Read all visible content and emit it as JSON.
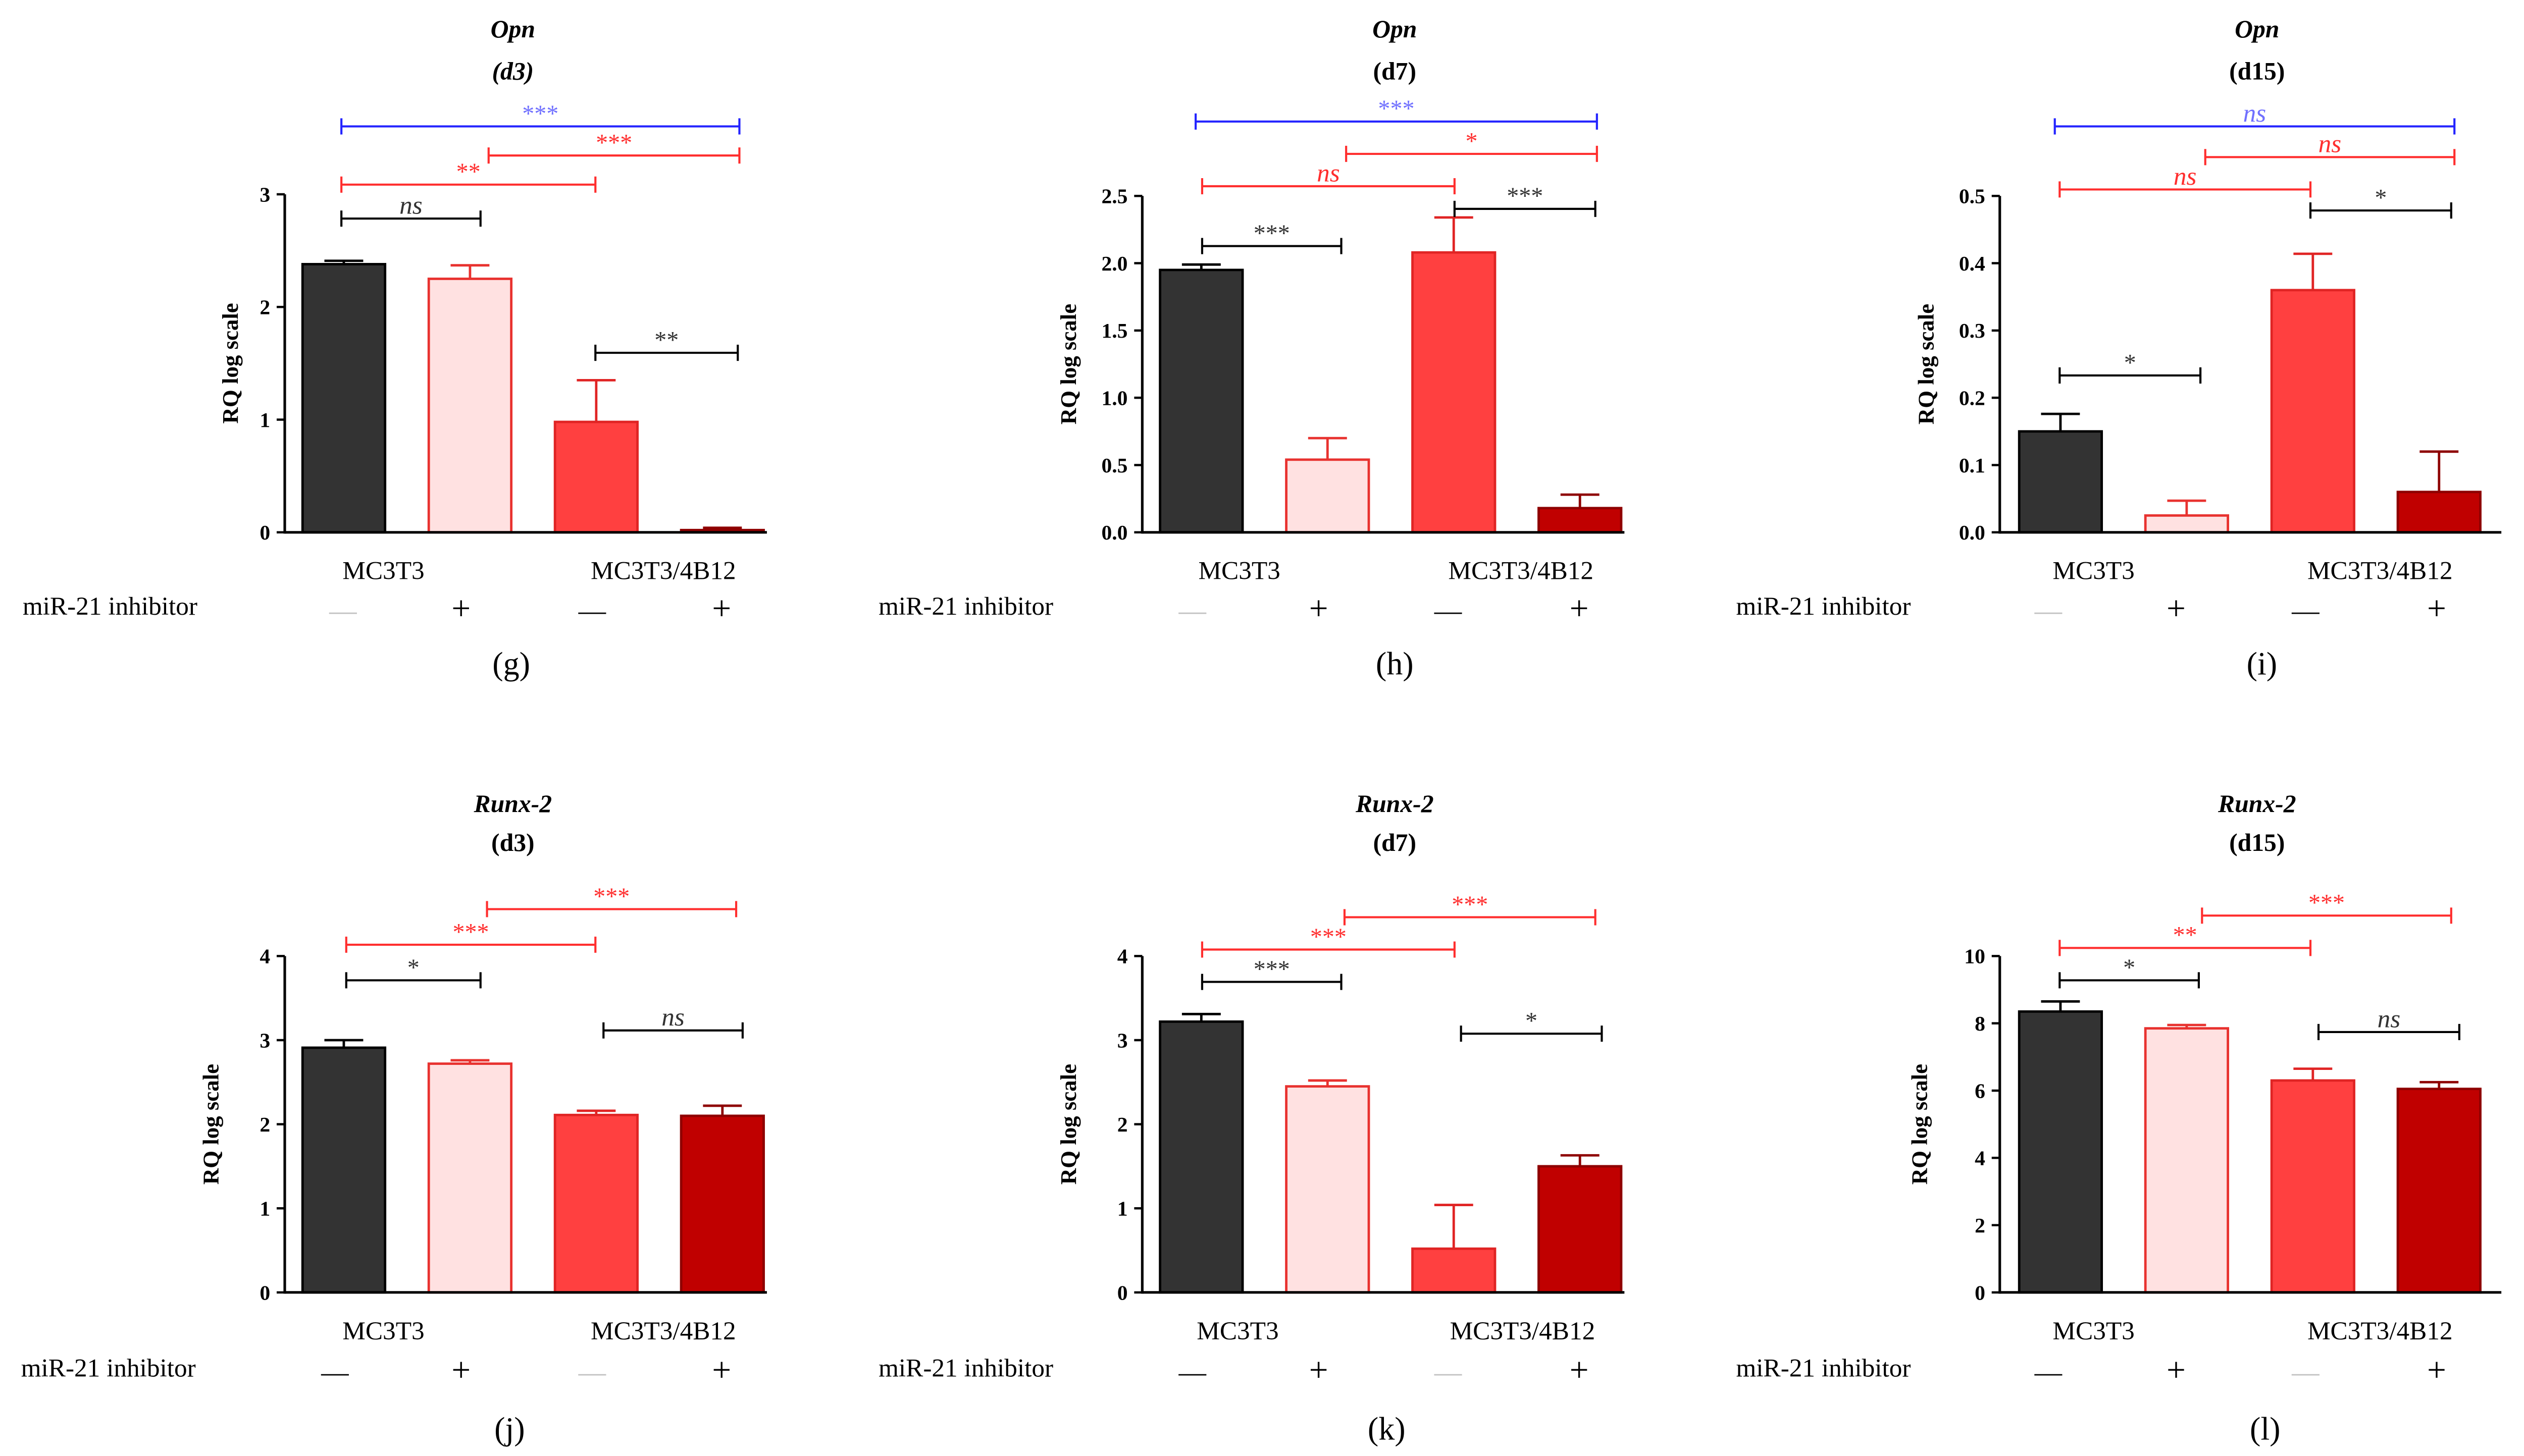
{
  "palette": {
    "bar_fill": [
      "#333333",
      "#ffe1e1",
      "#ff4040",
      "#c00000"
    ],
    "bar_edge": [
      "#000000",
      "#e8322f",
      "#e02424",
      "#8e0000"
    ],
    "axis": "#000000"
  },
  "chart_data": [
    {
      "type": "bar",
      "panel_label": "(g)",
      "title": "Opn",
      "subtitle": "(d3)",
      "xlabel": "",
      "ylabel": "RQ log scale",
      "ylim": [
        0,
        3
      ],
      "yticks": [
        "0",
        "1",
        "2",
        "3"
      ],
      "groups": [
        "MC3T3",
        "MC3T3/4B12"
      ],
      "inhibitor_label": "miR-21 inhibitor",
      "inhibitor": [
        "—",
        "+",
        "—",
        "+"
      ],
      "inhibitor_colors": [
        "#c2c2c2",
        "#000000",
        "#000000",
        "#000000"
      ],
      "values": [
        2.38,
        2.25,
        0.98,
        0.02
      ],
      "error_upper": [
        2.41,
        2.37,
        1.35,
        0.04
      ],
      "significance": [
        {
          "from": 0,
          "to": 3,
          "label": "***",
          "line_color": "#2424ff",
          "label_color": "#7070ff"
        },
        {
          "from": 1,
          "to": 3,
          "label": "***",
          "line_color": "#ff2e2e",
          "label_color": "#ff2e2e"
        },
        {
          "from": 0,
          "to": 2,
          "label": "**",
          "line_color": "#ff2e2e",
          "label_color": "#ff2e2e"
        },
        {
          "from": 0,
          "to": 1,
          "label": "ns",
          "line_color": "#000000",
          "label_color": "#333333"
        },
        {
          "from": 2,
          "to": 3,
          "label": "**",
          "line_color": "#000000",
          "label_color": "#333333"
        }
      ]
    },
    {
      "type": "bar",
      "panel_label": "(h)",
      "title": "Opn",
      "subtitle": "(d7)",
      "xlabel": "",
      "ylabel": "RQ log scale",
      "ylim": [
        0,
        2.5
      ],
      "yticks": [
        "0.0",
        "0.5",
        "1.0",
        "1.5",
        "2.0",
        "2.5"
      ],
      "groups": [
        "MC3T3",
        "MC3T3/4B12"
      ],
      "inhibitor_label": "miR-21 inhibitor",
      "inhibitor": [
        "—",
        "+",
        "—",
        "+"
      ],
      "inhibitor_colors": [
        "#c2c2c2",
        "#000000",
        "#000000",
        "#000000"
      ],
      "values": [
        1.95,
        0.54,
        2.08,
        0.18
      ],
      "error_upper": [
        1.99,
        0.7,
        2.34,
        0.28
      ],
      "significance": [
        {
          "from": 0,
          "to": 3,
          "label": "***",
          "line_color": "#2424ff",
          "label_color": "#7070ff"
        },
        {
          "from": 1,
          "to": 3,
          "label": "*",
          "line_color": "#ff2e2e",
          "label_color": "#ff2e2e"
        },
        {
          "from": 0,
          "to": 2,
          "label": "ns",
          "line_color": "#ff2e2e",
          "label_color": "#ff2e2e"
        },
        {
          "from": 2,
          "to": 3,
          "label": "***",
          "line_color": "#000000",
          "label_color": "#333333"
        },
        {
          "from": 0,
          "to": 1,
          "label": "***",
          "line_color": "#000000",
          "label_color": "#333333"
        }
      ]
    },
    {
      "type": "bar",
      "panel_label": "(i)",
      "title": "Opn",
      "subtitle": "(d15)",
      "xlabel": "",
      "ylabel": "RQ log scale",
      "ylim": [
        0,
        0.5
      ],
      "yticks": [
        "0.0",
        "0.1",
        "0.2",
        "0.3",
        "0.4",
        "0.5"
      ],
      "groups": [
        "MC3T3",
        "MC3T3/4B12"
      ],
      "inhibitor_label": "miR-21 inhibitor",
      "inhibitor": [
        "—",
        "+",
        "—",
        "+"
      ],
      "inhibitor_colors": [
        "#c2c2c2",
        "#000000",
        "#000000",
        "#000000"
      ],
      "values": [
        0.15,
        0.025,
        0.36,
        0.06
      ],
      "error_upper": [
        0.176,
        0.047,
        0.414,
        0.12
      ],
      "significance": [
        {
          "from": 0,
          "to": 3,
          "label": "ns",
          "line_color": "#2424ff",
          "label_color": "#7070ff"
        },
        {
          "from": 1,
          "to": 3,
          "label": "ns",
          "line_color": "#ff2e2e",
          "label_color": "#ff2e2e"
        },
        {
          "from": 0,
          "to": 2,
          "label": "ns",
          "line_color": "#ff2e2e",
          "label_color": "#ff2e2e"
        },
        {
          "from": 2,
          "to": 3,
          "label": "*",
          "line_color": "#000000",
          "label_color": "#333333"
        },
        {
          "from": 0,
          "to": 1,
          "label": "*",
          "line_color": "#000000",
          "label_color": "#333333"
        }
      ]
    },
    {
      "type": "bar",
      "panel_label": "(j)",
      "title": "Runx-2",
      "subtitle": "(d3)",
      "xlabel": "",
      "ylabel": "RQ log scale",
      "ylim": [
        0,
        4
      ],
      "yticks": [
        "0",
        "1",
        "2",
        "3",
        "4"
      ],
      "groups": [
        "MC3T3",
        "MC3T3/4B12"
      ],
      "inhibitor_label": "miR-21 inhibitor",
      "inhibitor": [
        "—",
        "+",
        "—",
        "+"
      ],
      "inhibitor_colors": [
        "#000000",
        "#000000",
        "#c2c2c2",
        "#000000"
      ],
      "values": [
        2.91,
        2.72,
        2.11,
        2.1
      ],
      "error_upper": [
        3.0,
        2.76,
        2.16,
        2.22
      ],
      "significance": [
        {
          "from": 1,
          "to": 3,
          "label": "***",
          "line_color": "#ff2e2e",
          "label_color": "#ff2e2e"
        },
        {
          "from": 0,
          "to": 2,
          "label": "***",
          "line_color": "#ff2e2e",
          "label_color": "#ff2e2e"
        },
        {
          "from": 0,
          "to": 1,
          "label": "*",
          "line_color": "#000000",
          "label_color": "#333333"
        },
        {
          "from": 2,
          "to": 3,
          "label": "ns",
          "line_color": "#000000",
          "label_color": "#333333"
        }
      ]
    },
    {
      "type": "bar",
      "panel_label": "(k)",
      "title": "Runx-2",
      "subtitle": "(d7)",
      "xlabel": "",
      "ylabel": "RQ log scale",
      "ylim": [
        0,
        4
      ],
      "yticks": [
        "0",
        "1",
        "2",
        "3",
        "4"
      ],
      "groups": [
        "MC3T3",
        "MC3T3/4B12"
      ],
      "inhibitor_label": "miR-21 inhibitor",
      "inhibitor": [
        "—",
        "+",
        "—",
        "+"
      ],
      "inhibitor_colors": [
        "#000000",
        "#000000",
        "#c2c2c2",
        "#000000"
      ],
      "values": [
        3.22,
        2.45,
        0.52,
        1.5
      ],
      "error_upper": [
        3.31,
        2.52,
        1.04,
        1.63
      ],
      "significance": [
        {
          "from": 1,
          "to": 3,
          "label": "***",
          "line_color": "#ff2e2e",
          "label_color": "#ff2e2e"
        },
        {
          "from": 0,
          "to": 2,
          "label": "***",
          "line_color": "#ff2e2e",
          "label_color": "#ff2e2e"
        },
        {
          "from": 0,
          "to": 1,
          "label": "***",
          "line_color": "#000000",
          "label_color": "#333333"
        },
        {
          "from": 2,
          "to": 3,
          "label": "*",
          "line_color": "#000000",
          "label_color": "#333333"
        }
      ]
    },
    {
      "type": "bar",
      "panel_label": "(l)",
      "title": "Runx-2",
      "subtitle": "(d15)",
      "xlabel": "",
      "ylabel": "RQ log scale",
      "ylim": [
        0,
        10
      ],
      "yticks": [
        "0",
        "2",
        "4",
        "6",
        "8",
        "10"
      ],
      "groups": [
        "MC3T3",
        "MC3T3/4B12"
      ],
      "inhibitor_label": "miR-21 inhibitor",
      "inhibitor": [
        "—",
        "+",
        "—",
        "+"
      ],
      "inhibitor_colors": [
        "#000000",
        "#000000",
        "#c2c2c2",
        "#000000"
      ],
      "values": [
        8.35,
        7.85,
        6.3,
        6.05
      ],
      "error_upper": [
        8.65,
        7.95,
        6.65,
        6.25
      ],
      "significance": [
        {
          "from": 1,
          "to": 3,
          "label": "***",
          "line_color": "#ff2e2e",
          "label_color": "#ff2e2e"
        },
        {
          "from": 0,
          "to": 2,
          "label": "**",
          "line_color": "#ff2e2e",
          "label_color": "#ff2e2e"
        },
        {
          "from": 0,
          "to": 1,
          "label": "*",
          "line_color": "#000000",
          "label_color": "#333333"
        },
        {
          "from": 2,
          "to": 3,
          "label": "ns",
          "line_color": "#000000",
          "label_color": "#333333"
        }
      ]
    }
  ]
}
